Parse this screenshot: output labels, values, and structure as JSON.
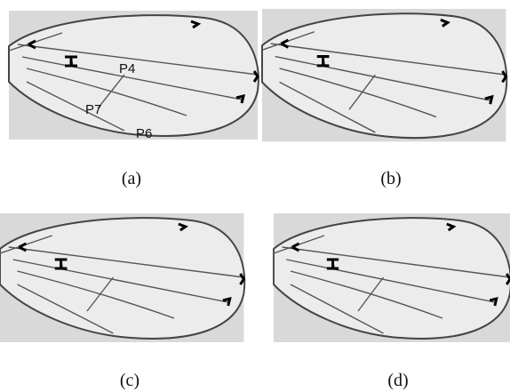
{
  "panels": [
    {
      "caption": "(a)",
      "labels": [
        "P4",
        "P7",
        "P6"
      ]
    },
    {
      "caption": "(b)"
    },
    {
      "caption": "(c)"
    },
    {
      "caption": "(d)"
    }
  ]
}
